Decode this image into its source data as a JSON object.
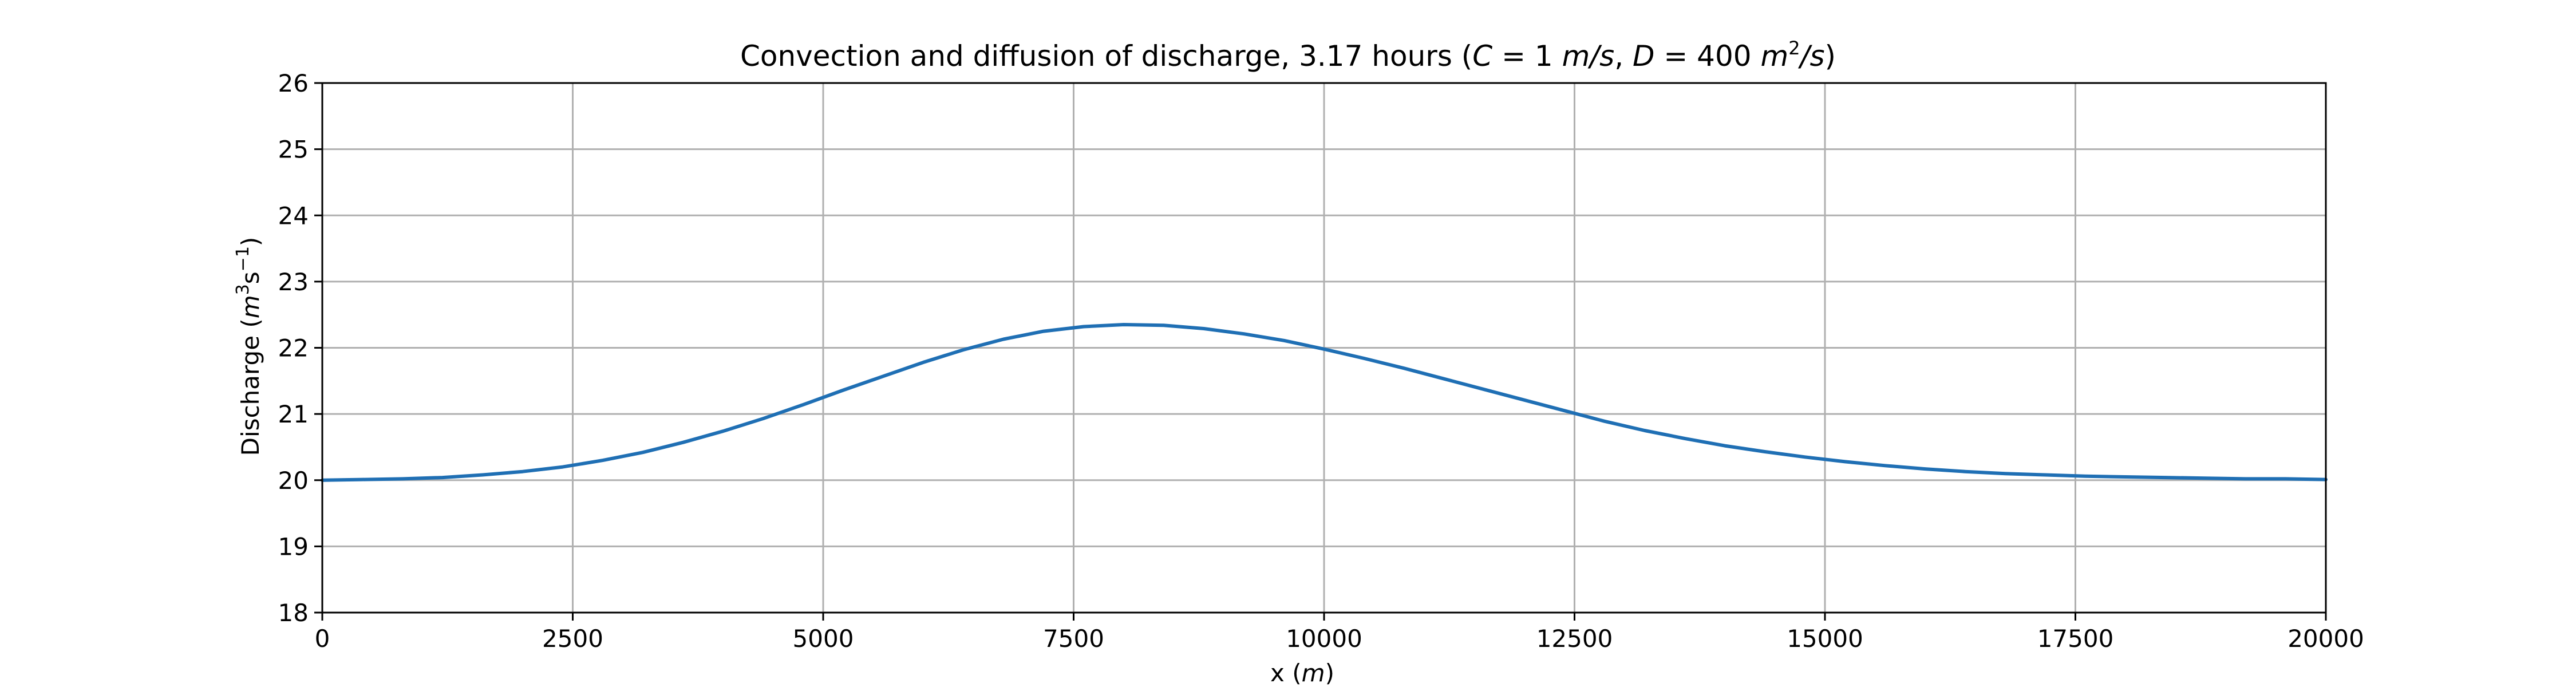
{
  "chart_data": {
    "type": "line",
    "title": "Convection and diffusion of discharge, 3.17 hours (C = 1 m/s, D = 400 m²/s)",
    "title_parts": {
      "prefix": "Convection and diffusion of discharge, 3.17 hours (",
      "c_symbol": "C",
      "c_value": " = 1 ",
      "c_unit": "m/s",
      "sep": ", ",
      "d_symbol": "D",
      "d_value": " = 400 ",
      "d_unit_base": "m",
      "d_unit_exp": "2",
      "d_unit_tail": "/s",
      "suffix": ")"
    },
    "xlabel": "x (m)",
    "xlabel_parts": {
      "text": "x (",
      "unit": "m",
      "close": ")"
    },
    "ylabel": "Discharge (m³s⁻¹)",
    "ylabel_parts": {
      "text": "Discharge (",
      "unit_m": "m",
      "exp3": "3",
      "unit_s": "s",
      "exp_neg1": "−1",
      "close": ")"
    },
    "xlim": [
      0,
      20000
    ],
    "ylim": [
      18,
      26
    ],
    "xticks": [
      0,
      2500,
      5000,
      7500,
      10000,
      12500,
      15000,
      17500,
      20000
    ],
    "yticks": [
      18,
      19,
      20,
      21,
      22,
      23,
      24,
      25,
      26
    ],
    "grid": true,
    "series": [
      {
        "color": "#1f6fb4",
        "x": [
          0,
          400,
          800,
          1200,
          1600,
          2000,
          2400,
          2800,
          3200,
          3600,
          4000,
          4400,
          4800,
          5200,
          5600,
          6000,
          6400,
          6800,
          7200,
          7600,
          8000,
          8400,
          8800,
          9200,
          9600,
          10000,
          10400,
          10800,
          11200,
          11600,
          12000,
          12400,
          12800,
          13200,
          13600,
          14000,
          14400,
          14800,
          15200,
          15600,
          16000,
          16400,
          16800,
          17200,
          17600,
          18000,
          18400,
          18800,
          19200,
          19600,
          20000
        ],
        "values": [
          20.0,
          20.01,
          20.02,
          20.04,
          20.08,
          20.13,
          20.2,
          20.3,
          20.42,
          20.57,
          20.74,
          20.93,
          21.14,
          21.36,
          21.57,
          21.78,
          21.97,
          22.13,
          22.25,
          22.32,
          22.35,
          22.34,
          22.29,
          22.21,
          22.11,
          21.98,
          21.84,
          21.69,
          21.53,
          21.37,
          21.21,
          21.05,
          20.89,
          20.75,
          20.63,
          20.52,
          20.43,
          20.35,
          20.28,
          20.22,
          20.17,
          20.13,
          20.1,
          20.08,
          20.06,
          20.05,
          20.04,
          20.03,
          20.02,
          20.02,
          20.01
        ]
      }
    ]
  }
}
